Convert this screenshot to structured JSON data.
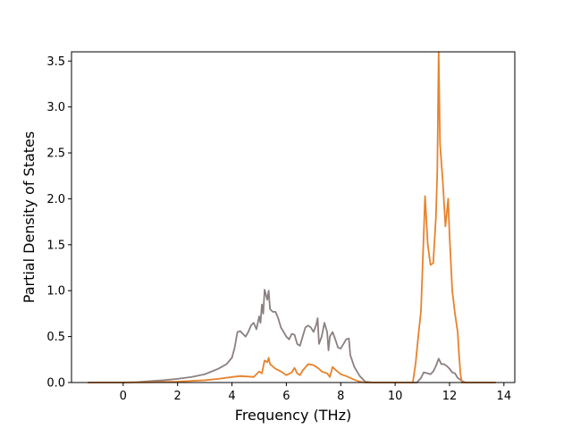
{
  "chart_data": {
    "type": "line",
    "title": "",
    "xlabel": "Frequency (THz)",
    "ylabel": "Partial Density of States",
    "xlim": [
      -1.9,
      14.4
    ],
    "ylim": [
      0,
      3.6
    ],
    "xticks": [
      "0",
      "2",
      "4",
      "6",
      "8",
      "10",
      "12",
      "14"
    ],
    "yticks": [
      "0.0",
      "0.5",
      "1.0",
      "1.5",
      "2.0",
      "2.5",
      "3.0",
      "3.5"
    ],
    "grid": false,
    "legend": "none",
    "series": [
      {
        "color": "#8c7f80",
        "points": [
          [
            -1.3,
            0.0
          ],
          [
            0.0,
            0.0
          ],
          [
            0.5,
            0.005
          ],
          [
            1.0,
            0.015
          ],
          [
            1.5,
            0.025
          ],
          [
            2.0,
            0.04
          ],
          [
            2.5,
            0.06
          ],
          [
            3.0,
            0.09
          ],
          [
            3.5,
            0.15
          ],
          [
            3.8,
            0.2
          ],
          [
            4.0,
            0.27
          ],
          [
            4.1,
            0.38
          ],
          [
            4.2,
            0.55
          ],
          [
            4.3,
            0.56
          ],
          [
            4.4,
            0.53
          ],
          [
            4.5,
            0.5
          ],
          [
            4.6,
            0.55
          ],
          [
            4.7,
            0.62
          ],
          [
            4.8,
            0.65
          ],
          [
            4.9,
            0.58
          ],
          [
            5.0,
            0.72
          ],
          [
            5.05,
            0.65
          ],
          [
            5.1,
            0.85
          ],
          [
            5.15,
            0.75
          ],
          [
            5.2,
            1.01
          ],
          [
            5.3,
            0.9
          ],
          [
            5.35,
            1.0
          ],
          [
            5.4,
            0.8
          ],
          [
            5.5,
            0.77
          ],
          [
            5.6,
            0.77
          ],
          [
            5.7,
            0.7
          ],
          [
            5.8,
            0.6
          ],
          [
            5.9,
            0.55
          ],
          [
            6.0,
            0.5
          ],
          [
            6.1,
            0.47
          ],
          [
            6.2,
            0.53
          ],
          [
            6.3,
            0.52
          ],
          [
            6.4,
            0.42
          ],
          [
            6.5,
            0.4
          ],
          [
            6.6,
            0.5
          ],
          [
            6.7,
            0.6
          ],
          [
            6.8,
            0.62
          ],
          [
            6.9,
            0.6
          ],
          [
            7.0,
            0.55
          ],
          [
            7.1,
            0.63
          ],
          [
            7.15,
            0.7
          ],
          [
            7.2,
            0.42
          ],
          [
            7.3,
            0.5
          ],
          [
            7.4,
            0.65
          ],
          [
            7.5,
            0.55
          ],
          [
            7.55,
            0.35
          ],
          [
            7.6,
            0.5
          ],
          [
            7.7,
            0.55
          ],
          [
            7.8,
            0.47
          ],
          [
            7.9,
            0.38
          ],
          [
            8.0,
            0.37
          ],
          [
            8.1,
            0.42
          ],
          [
            8.2,
            0.47
          ],
          [
            8.3,
            0.48
          ],
          [
            8.35,
            0.3
          ],
          [
            8.5,
            0.17
          ],
          [
            8.7,
            0.07
          ],
          [
            8.9,
            0.01
          ],
          [
            9.2,
            0.0
          ],
          [
            10.8,
            0.0
          ],
          [
            10.95,
            0.05
          ],
          [
            11.05,
            0.11
          ],
          [
            11.2,
            0.1
          ],
          [
            11.3,
            0.09
          ],
          [
            11.4,
            0.12
          ],
          [
            11.5,
            0.18
          ],
          [
            11.6,
            0.26
          ],
          [
            11.7,
            0.2
          ],
          [
            11.8,
            0.2
          ],
          [
            11.9,
            0.18
          ],
          [
            12.0,
            0.15
          ],
          [
            12.1,
            0.11
          ],
          [
            12.2,
            0.1
          ],
          [
            12.3,
            0.05
          ],
          [
            12.4,
            0.03
          ],
          [
            12.5,
            0.01
          ],
          [
            12.6,
            0.0
          ],
          [
            13.7,
            0.0
          ]
        ]
      },
      {
        "color": "#e8822b",
        "points": [
          [
            -1.3,
            0.0
          ],
          [
            0.0,
            0.0
          ],
          [
            1.0,
            0.003
          ],
          [
            2.0,
            0.01
          ],
          [
            3.0,
            0.025
          ],
          [
            3.5,
            0.04
          ],
          [
            4.0,
            0.06
          ],
          [
            4.3,
            0.07
          ],
          [
            4.6,
            0.065
          ],
          [
            4.8,
            0.06
          ],
          [
            5.0,
            0.12
          ],
          [
            5.1,
            0.1
          ],
          [
            5.2,
            0.24
          ],
          [
            5.3,
            0.22
          ],
          [
            5.35,
            0.27
          ],
          [
            5.4,
            0.2
          ],
          [
            5.6,
            0.15
          ],
          [
            5.8,
            0.12
          ],
          [
            6.0,
            0.08
          ],
          [
            6.2,
            0.11
          ],
          [
            6.3,
            0.16
          ],
          [
            6.4,
            0.1
          ],
          [
            6.5,
            0.08
          ],
          [
            6.6,
            0.13
          ],
          [
            6.8,
            0.2
          ],
          [
            7.0,
            0.19
          ],
          [
            7.2,
            0.15
          ],
          [
            7.3,
            0.12
          ],
          [
            7.5,
            0.1
          ],
          [
            7.6,
            0.06
          ],
          [
            7.7,
            0.17
          ],
          [
            7.8,
            0.14
          ],
          [
            8.0,
            0.09
          ],
          [
            8.2,
            0.07
          ],
          [
            8.35,
            0.05
          ],
          [
            8.5,
            0.03
          ],
          [
            8.7,
            0.01
          ],
          [
            8.9,
            0.0
          ],
          [
            10.65,
            0.0
          ],
          [
            10.75,
            0.2
          ],
          [
            10.85,
            0.5
          ],
          [
            10.95,
            0.78
          ],
          [
            11.05,
            1.6
          ],
          [
            11.1,
            2.03
          ],
          [
            11.2,
            1.5
          ],
          [
            11.3,
            1.28
          ],
          [
            11.4,
            1.3
          ],
          [
            11.5,
            1.8
          ],
          [
            11.55,
            2.3
          ],
          [
            11.6,
            3.6
          ],
          [
            11.65,
            2.6
          ],
          [
            11.75,
            2.2
          ],
          [
            11.85,
            1.7
          ],
          [
            11.95,
            2.0
          ],
          [
            12.0,
            1.6
          ],
          [
            12.1,
            1.0
          ],
          [
            12.2,
            0.75
          ],
          [
            12.3,
            0.55
          ],
          [
            12.35,
            0.3
          ],
          [
            12.4,
            0.1
          ],
          [
            12.45,
            0.0
          ],
          [
            13.7,
            0.0
          ]
        ]
      }
    ]
  }
}
